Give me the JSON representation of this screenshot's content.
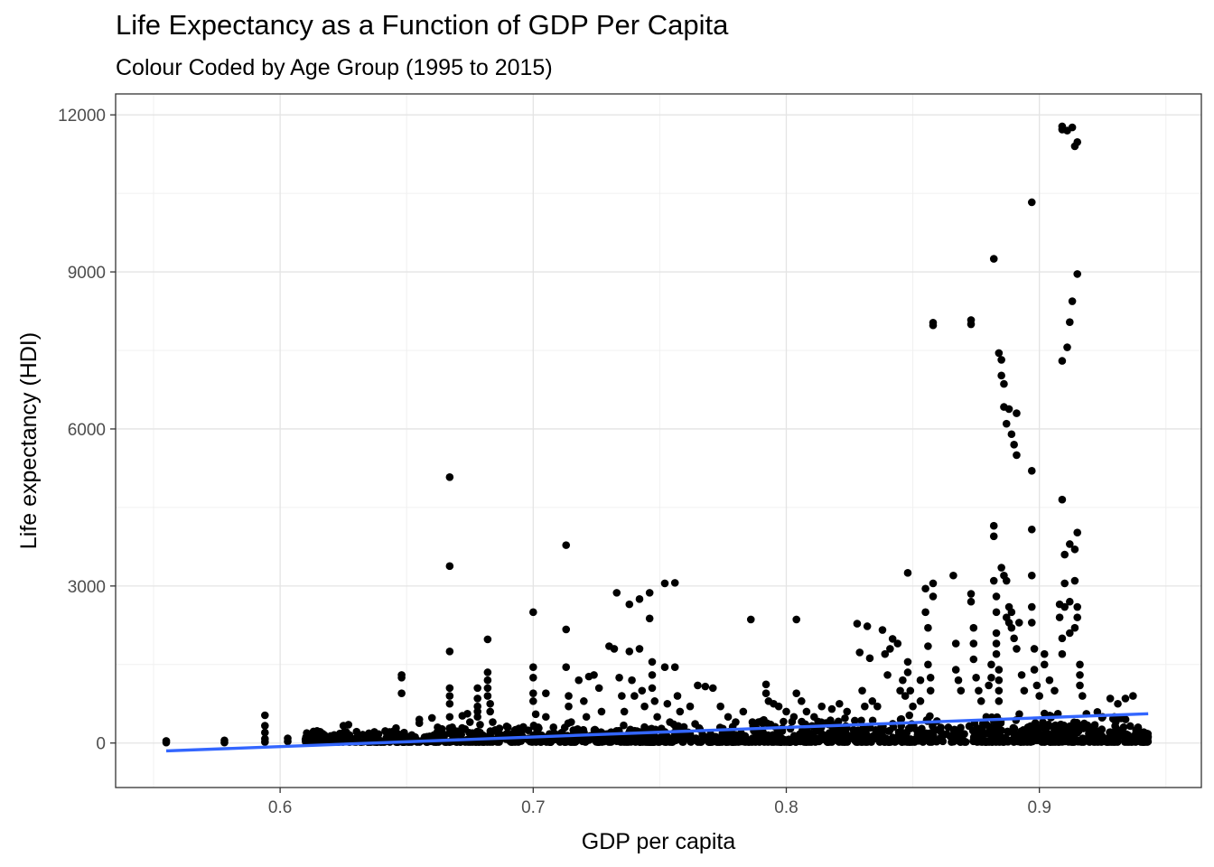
{
  "chart_data": {
    "type": "scatter",
    "title": "Life Expectancy as a Function of GDP Per Capita",
    "subtitle": "Colour Coded by Age Group (1995 to 2015)",
    "xlabel": "GDP per capita",
    "ylabel": "Life expectancy (HDI)",
    "xlim": [
      0.535,
      0.964
    ],
    "ylim": [
      -850,
      12400
    ],
    "x_ticks": [
      0.6,
      0.7,
      0.8,
      0.9
    ],
    "x_tick_labels": [
      "0.6",
      "0.7",
      "0.8",
      "0.9"
    ],
    "y_ticks": [
      0,
      3000,
      6000,
      9000,
      12000
    ],
    "y_tick_labels": [
      "0",
      "3000",
      "6000",
      "9000",
      "12000"
    ],
    "grid": true,
    "legend": "none",
    "point_color": "#000000",
    "trend_color": "#3366FF",
    "trend_line": {
      "x": [
        0.555,
        0.943
      ],
      "y": [
        -150,
        560
      ]
    },
    "points": [
      [
        0.555,
        10
      ],
      [
        0.555,
        40
      ],
      [
        0.578,
        10
      ],
      [
        0.578,
        50
      ],
      [
        0.594,
        530
      ],
      [
        0.594,
        330
      ],
      [
        0.594,
        200
      ],
      [
        0.594,
        80
      ],
      [
        0.594,
        20
      ],
      [
        0.603,
        90
      ],
      [
        0.603,
        30
      ],
      [
        0.612,
        60
      ],
      [
        0.615,
        100
      ],
      [
        0.618,
        80
      ],
      [
        0.621,
        40
      ],
      [
        0.624,
        120
      ],
      [
        0.625,
        330
      ],
      [
        0.627,
        350
      ],
      [
        0.63,
        90
      ],
      [
        0.635,
        50
      ],
      [
        0.638,
        70
      ],
      [
        0.642,
        100
      ],
      [
        0.645,
        60
      ],
      [
        0.648,
        1300
      ],
      [
        0.648,
        1250
      ],
      [
        0.648,
        950
      ],
      [
        0.649,
        200
      ],
      [
        0.652,
        150
      ],
      [
        0.655,
        450
      ],
      [
        0.655,
        380
      ],
      [
        0.658,
        120
      ],
      [
        0.66,
        480
      ],
      [
        0.662,
        200
      ],
      [
        0.667,
        5080
      ],
      [
        0.667,
        3380
      ],
      [
        0.667,
        1750
      ],
      [
        0.667,
        1050
      ],
      [
        0.667,
        900
      ],
      [
        0.667,
        750
      ],
      [
        0.667,
        500
      ],
      [
        0.668,
        300
      ],
      [
        0.669,
        120
      ],
      [
        0.672,
        520
      ],
      [
        0.674,
        560
      ],
      [
        0.675,
        400
      ],
      [
        0.678,
        1050
      ],
      [
        0.678,
        850
      ],
      [
        0.678,
        700
      ],
      [
        0.678,
        600
      ],
      [
        0.678,
        500
      ],
      [
        0.679,
        350
      ],
      [
        0.679,
        200
      ],
      [
        0.68,
        100
      ],
      [
        0.682,
        1980
      ],
      [
        0.682,
        1350
      ],
      [
        0.682,
        1200
      ],
      [
        0.682,
        1050
      ],
      [
        0.682,
        900
      ],
      [
        0.683,
        750
      ],
      [
        0.683,
        600
      ],
      [
        0.684,
        400
      ],
      [
        0.685,
        250
      ],
      [
        0.69,
        300
      ],
      [
        0.693,
        200
      ],
      [
        0.695,
        150
      ],
      [
        0.7,
        2500
      ],
      [
        0.7,
        1450
      ],
      [
        0.7,
        1250
      ],
      [
        0.7,
        950
      ],
      [
        0.7,
        800
      ],
      [
        0.701,
        550
      ],
      [
        0.702,
        300
      ],
      [
        0.705,
        950
      ],
      [
        0.705,
        500
      ],
      [
        0.708,
        300
      ],
      [
        0.713,
        3780
      ],
      [
        0.713,
        2170
      ],
      [
        0.713,
        1450
      ],
      [
        0.714,
        900
      ],
      [
        0.714,
        700
      ],
      [
        0.715,
        400
      ],
      [
        0.718,
        1200
      ],
      [
        0.72,
        800
      ],
      [
        0.721,
        500
      ],
      [
        0.722,
        1270
      ],
      [
        0.724,
        1300
      ],
      [
        0.726,
        1050
      ],
      [
        0.727,
        600
      ],
      [
        0.73,
        1850
      ],
      [
        0.732,
        1800
      ],
      [
        0.733,
        2870
      ],
      [
        0.734,
        1250
      ],
      [
        0.735,
        900
      ],
      [
        0.736,
        600
      ],
      [
        0.738,
        2650
      ],
      [
        0.738,
        1750
      ],
      [
        0.739,
        1200
      ],
      [
        0.74,
        900
      ],
      [
        0.742,
        2750
      ],
      [
        0.742,
        1800
      ],
      [
        0.743,
        1000
      ],
      [
        0.744,
        700
      ],
      [
        0.746,
        2870
      ],
      [
        0.746,
        2380
      ],
      [
        0.747,
        1550
      ],
      [
        0.747,
        1300
      ],
      [
        0.747,
        1050
      ],
      [
        0.748,
        800
      ],
      [
        0.749,
        500
      ],
      [
        0.752,
        3050
      ],
      [
        0.752,
        1450
      ],
      [
        0.753,
        750
      ],
      [
        0.754,
        400
      ],
      [
        0.756,
        3060
      ],
      [
        0.756,
        1450
      ],
      [
        0.757,
        900
      ],
      [
        0.758,
        600
      ],
      [
        0.762,
        700
      ],
      [
        0.765,
        1100
      ],
      [
        0.768,
        1080
      ],
      [
        0.771,
        1050
      ],
      [
        0.774,
        700
      ],
      [
        0.777,
        500
      ],
      [
        0.78,
        400
      ],
      [
        0.783,
        600
      ],
      [
        0.786,
        2360
      ],
      [
        0.789,
        400
      ],
      [
        0.792,
        1120
      ],
      [
        0.792,
        950
      ],
      [
        0.793,
        800
      ],
      [
        0.795,
        750
      ],
      [
        0.797,
        700
      ],
      [
        0.8,
        600
      ],
      [
        0.803,
        500
      ],
      [
        0.804,
        2360
      ],
      [
        0.804,
        950
      ],
      [
        0.806,
        800
      ],
      [
        0.808,
        600
      ],
      [
        0.811,
        500
      ],
      [
        0.814,
        700
      ],
      [
        0.818,
        650
      ],
      [
        0.821,
        750
      ],
      [
        0.824,
        600
      ],
      [
        0.828,
        2280
      ],
      [
        0.829,
        1730
      ],
      [
        0.83,
        1000
      ],
      [
        0.831,
        700
      ],
      [
        0.832,
        2230
      ],
      [
        0.833,
        1620
      ],
      [
        0.834,
        800
      ],
      [
        0.836,
        700
      ],
      [
        0.838,
        2160
      ],
      [
        0.839,
        1700
      ],
      [
        0.84,
        1300
      ],
      [
        0.841,
        1800
      ],
      [
        0.842,
        1990
      ],
      [
        0.844,
        1900
      ],
      [
        0.845,
        1000
      ],
      [
        0.846,
        1200
      ],
      [
        0.847,
        900
      ],
      [
        0.848,
        3250
      ],
      [
        0.848,
        1550
      ],
      [
        0.848,
        1350
      ],
      [
        0.849,
        1000
      ],
      [
        0.85,
        700
      ],
      [
        0.853,
        1200
      ],
      [
        0.853,
        800
      ],
      [
        0.855,
        2950
      ],
      [
        0.855,
        2500
      ],
      [
        0.856,
        2200
      ],
      [
        0.856,
        1850
      ],
      [
        0.856,
        1500
      ],
      [
        0.857,
        1250
      ],
      [
        0.857,
        1000
      ],
      [
        0.858,
        8030
      ],
      [
        0.858,
        7980
      ],
      [
        0.858,
        3050
      ],
      [
        0.858,
        2800
      ],
      [
        0.866,
        3200
      ],
      [
        0.867,
        1900
      ],
      [
        0.867,
        1400
      ],
      [
        0.868,
        1200
      ],
      [
        0.869,
        1000
      ],
      [
        0.873,
        8080
      ],
      [
        0.873,
        8000
      ],
      [
        0.873,
        2850
      ],
      [
        0.873,
        2700
      ],
      [
        0.874,
        2200
      ],
      [
        0.874,
        1900
      ],
      [
        0.874,
        1600
      ],
      [
        0.875,
        1250
      ],
      [
        0.876,
        1000
      ],
      [
        0.877,
        800
      ],
      [
        0.88,
        1100
      ],
      [
        0.881,
        1500
      ],
      [
        0.881,
        1250
      ],
      [
        0.882,
        9250
      ],
      [
        0.882,
        4150
      ],
      [
        0.882,
        3950
      ],
      [
        0.882,
        3100
      ],
      [
        0.883,
        2800
      ],
      [
        0.883,
        2500
      ],
      [
        0.883,
        2100
      ],
      [
        0.883,
        1900
      ],
      [
        0.883,
        1700
      ],
      [
        0.884,
        1400
      ],
      [
        0.884,
        1200
      ],
      [
        0.884,
        1000
      ],
      [
        0.884,
        800
      ],
      [
        0.884,
        7450
      ],
      [
        0.885,
        7320
      ],
      [
        0.885,
        7020
      ],
      [
        0.886,
        6860
      ],
      [
        0.886,
        6420
      ],
      [
        0.887,
        6100
      ],
      [
        0.888,
        6380
      ],
      [
        0.889,
        5900
      ],
      [
        0.89,
        5700
      ],
      [
        0.891,
        6300
      ],
      [
        0.891,
        5500
      ],
      [
        0.885,
        3350
      ],
      [
        0.886,
        3200
      ],
      [
        0.887,
        3100
      ],
      [
        0.887,
        2400
      ],
      [
        0.888,
        2600
      ],
      [
        0.888,
        2300
      ],
      [
        0.889,
        2500
      ],
      [
        0.889,
        2200
      ],
      [
        0.89,
        2000
      ],
      [
        0.891,
        1800
      ],
      [
        0.892,
        2300
      ],
      [
        0.893,
        1300
      ],
      [
        0.894,
        1000
      ],
      [
        0.897,
        10330
      ],
      [
        0.897,
        5200
      ],
      [
        0.897,
        4080
      ],
      [
        0.897,
        3200
      ],
      [
        0.897,
        2600
      ],
      [
        0.897,
        2300
      ],
      [
        0.898,
        1800
      ],
      [
        0.898,
        1400
      ],
      [
        0.899,
        1100
      ],
      [
        0.9,
        900
      ],
      [
        0.902,
        1700
      ],
      [
        0.902,
        1500
      ],
      [
        0.904,
        1200
      ],
      [
        0.906,
        1000
      ],
      [
        0.908,
        2650
      ],
      [
        0.908,
        2400
      ],
      [
        0.909,
        2000
      ],
      [
        0.909,
        1700
      ],
      [
        0.909,
        11780
      ],
      [
        0.909,
        11720
      ],
      [
        0.909,
        7300
      ],
      [
        0.909,
        4650
      ],
      [
        0.91,
        3600
      ],
      [
        0.91,
        3050
      ],
      [
        0.91,
        2600
      ],
      [
        0.911,
        11700
      ],
      [
        0.911,
        7560
      ],
      [
        0.912,
        8040
      ],
      [
        0.912,
        3800
      ],
      [
        0.912,
        2700
      ],
      [
        0.912,
        2100
      ],
      [
        0.913,
        11760
      ],
      [
        0.913,
        8440
      ],
      [
        0.914,
        11400
      ],
      [
        0.914,
        3700
      ],
      [
        0.914,
        3100
      ],
      [
        0.914,
        2200
      ],
      [
        0.915,
        11480
      ],
      [
        0.915,
        8960
      ],
      [
        0.915,
        4020
      ],
      [
        0.915,
        2600
      ],
      [
        0.915,
        2400
      ],
      [
        0.916,
        1500
      ],
      [
        0.916,
        1300
      ],
      [
        0.916,
        1100
      ],
      [
        0.917,
        900
      ],
      [
        0.92,
        300
      ],
      [
        0.925,
        500
      ],
      [
        0.928,
        850
      ],
      [
        0.931,
        750
      ],
      [
        0.934,
        850
      ],
      [
        0.937,
        900
      ],
      [
        0.939,
        300
      ]
    ]
  }
}
